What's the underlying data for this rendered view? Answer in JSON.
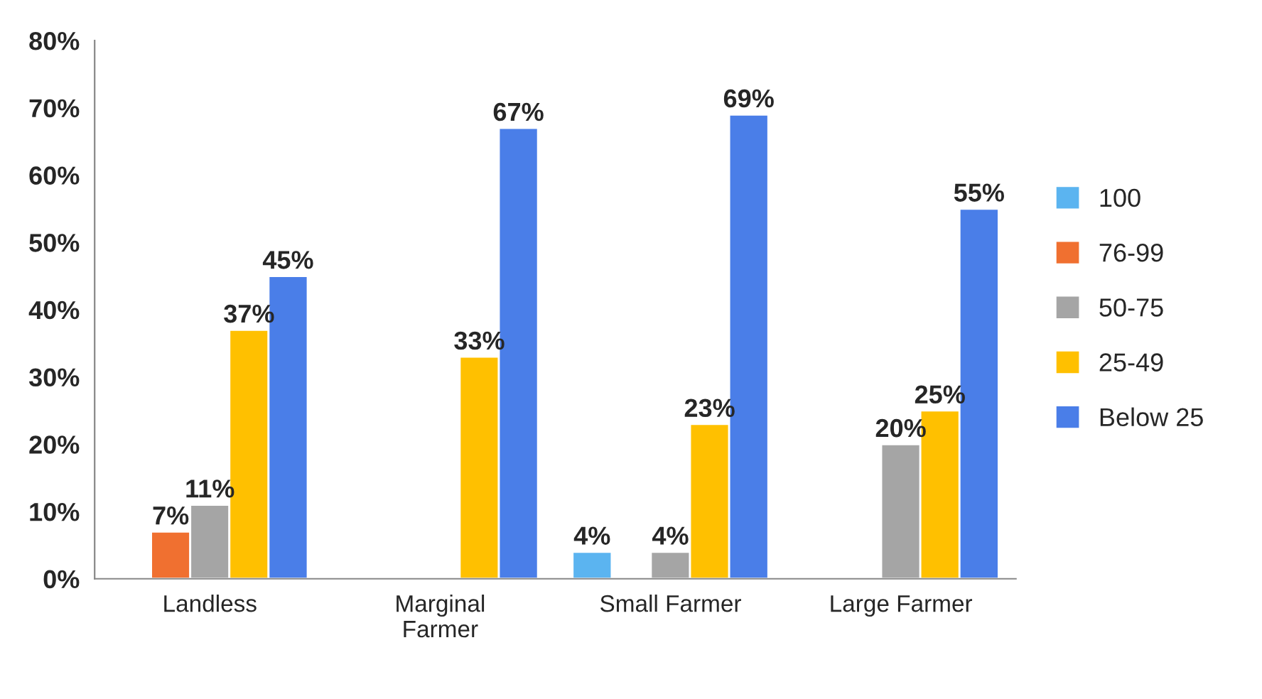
{
  "chart_data": {
    "type": "bar",
    "categories": [
      "Landless",
      "Marginal\nFarmer",
      "Small Farmer",
      "Large Farmer"
    ],
    "series": [
      {
        "name": "100",
        "color": "#5bb4f0",
        "values": [
          null,
          null,
          4,
          null
        ],
        "value_labels": [
          null,
          null,
          "4%",
          null
        ]
      },
      {
        "name": "76-99",
        "color": "#f07030",
        "values": [
          7,
          null,
          null,
          null
        ],
        "value_labels": [
          "7%",
          null,
          null,
          null
        ]
      },
      {
        "name": "50-75",
        "color": "#a5a5a5",
        "values": [
          11,
          null,
          4,
          20
        ],
        "value_labels": [
          "11%",
          null,
          "4%",
          "20%"
        ]
      },
      {
        "name": "25-49",
        "color": "#ffc000",
        "values": [
          37,
          33,
          23,
          25
        ],
        "value_labels": [
          "37%",
          "33%",
          "23%",
          "25%"
        ]
      },
      {
        "name": "Below 25",
        "color": "#4a7ee8",
        "values": [
          45,
          67,
          69,
          55
        ],
        "value_labels": [
          "45%",
          "67%",
          "69%",
          "55%"
        ]
      }
    ],
    "ylim": [
      0,
      80
    ],
    "yticks": [
      {
        "value": 0,
        "label": "0%"
      },
      {
        "value": 10,
        "label": "10%"
      },
      {
        "value": 20,
        "label": "20%"
      },
      {
        "value": 30,
        "label": "30%"
      },
      {
        "value": 40,
        "label": "40%"
      },
      {
        "value": 50,
        "label": "50%"
      },
      {
        "value": 60,
        "label": "60%"
      },
      {
        "value": 70,
        "label": "70%"
      },
      {
        "value": 80,
        "label": "80%"
      }
    ],
    "grid": false,
    "legend": "right"
  }
}
